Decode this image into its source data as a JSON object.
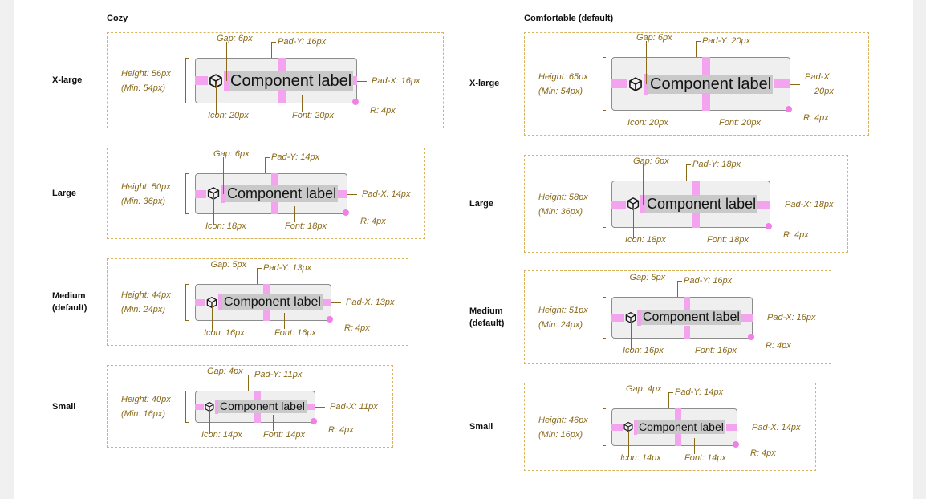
{
  "component": {
    "label": "Component label",
    "icon": "cube-icon"
  },
  "columns": [
    {
      "id": "cozy",
      "heading": "Cozy",
      "rows": [
        {
          "size": "X-large",
          "size_lines": [
            "X-large"
          ],
          "height": "Height: 56px",
          "min": "(Min: 54px)",
          "gap": "Gap: 6px",
          "pad_y": "Pad-Y: 16px",
          "pad_x": "Pad-X: 16px",
          "icon": "Icon: 20px",
          "font": "Font: 20px",
          "radius": "R: 4px"
        },
        {
          "size": "Large",
          "size_lines": [
            "Large"
          ],
          "height": "Height: 50px",
          "min": "(Min: 36px)",
          "gap": "Gap: 6px",
          "pad_y": "Pad-Y: 14px",
          "pad_x": "Pad-X: 14px",
          "icon": "Icon: 18px",
          "font": "Font: 18px",
          "radius": "R: 4px"
        },
        {
          "size": "Medium (default)",
          "size_lines": [
            "Medium",
            "(default)"
          ],
          "height": "Height: 44px",
          "min": "(Min: 24px)",
          "gap": "Gap: 5px",
          "pad_y": "Pad-Y: 13px",
          "pad_x": "Pad-X: 13px",
          "icon": "Icon: 16px",
          "font": "Font: 16px",
          "radius": "R: 4px"
        },
        {
          "size": "Small",
          "size_lines": [
            "Small"
          ],
          "height": "Height: 40px",
          "min": "(Min: 16px)",
          "gap": "Gap: 4px",
          "pad_y": "Pad-Y: 11px",
          "pad_x": "Pad-X: 11px",
          "icon": "Icon: 14px",
          "font": "Font: 14px",
          "radius": "R: 4px"
        }
      ]
    },
    {
      "id": "comfortable",
      "heading": "Comfortable (default)",
      "rows": [
        {
          "size": "X-large",
          "size_lines": [
            "X-large"
          ],
          "height": "Height: 65px",
          "min": "(Min: 54px)",
          "gap": "Gap: 6px",
          "pad_y": "Pad-Y: 20px",
          "pad_x": "Pad-X: 20px",
          "pad_x_lines": [
            "Pad-X:",
            "20px"
          ],
          "icon": "Icon: 20px",
          "font": "Font: 20px",
          "radius": "R: 4px"
        },
        {
          "size": "Large",
          "size_lines": [
            "Large"
          ],
          "height": "Height: 58px",
          "min": "(Min: 36px)",
          "gap": "Gap: 6px",
          "pad_y": "Pad-Y: 18px",
          "pad_x": "Pad-X: 18px",
          "icon": "Icon: 18px",
          "font": "Font: 18px",
          "radius": "R: 4px"
        },
        {
          "size": "Medium (default)",
          "size_lines": [
            "Medium",
            "(default)"
          ],
          "height": "Height: 51px",
          "min": "(Min: 24px)",
          "gap": "Gap: 5px",
          "pad_y": "Pad-Y: 16px",
          "pad_x": "Pad-X: 16px",
          "icon": "Icon: 16px",
          "font": "Font: 16px",
          "radius": "R: 4px"
        },
        {
          "size": "Small",
          "size_lines": [
            "Small"
          ],
          "height": "Height: 46px",
          "min": "(Min: 16px)",
          "gap": "Gap: 4px",
          "pad_y": "Pad-Y: 14px",
          "pad_x": "Pad-X: 14px",
          "icon": "Icon: 14px",
          "font": "Font: 14px",
          "radius": "R: 4px"
        }
      ]
    }
  ]
}
